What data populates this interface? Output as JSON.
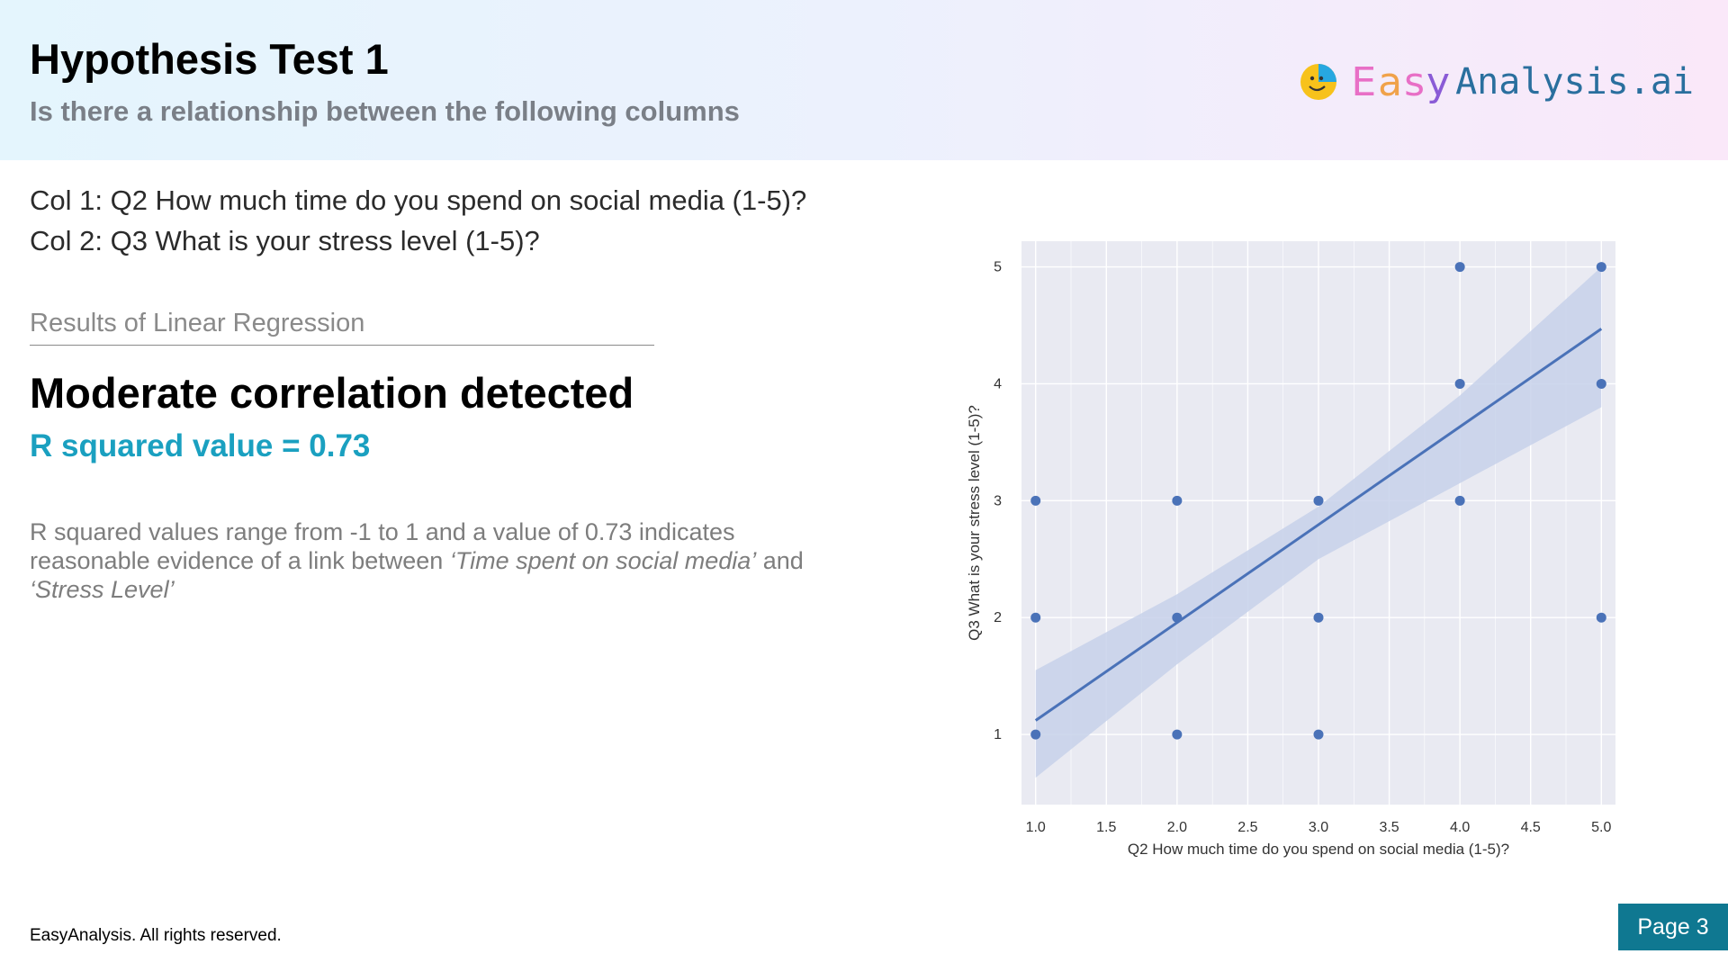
{
  "header": {
    "title": "Hypothesis Test 1",
    "subtitle": "Is there a relationship between the following columns",
    "logo": {
      "icon": "smiley-pie-icon",
      "brand_easy": [
        "E",
        "a",
        "s",
        "y"
      ],
      "brand_rest": "Analysis.ai"
    }
  },
  "columns": {
    "col1": "Col 1: Q2 How much time do you spend on social media (1-5)?",
    "col2": "Col 2: Q3 What is your stress level (1-5)?"
  },
  "results": {
    "label": "Results of Linear Regression",
    "headline": "Moderate correlation detected",
    "rsquared": "R squared value = 0.73",
    "explanation": {
      "part1": "R squared values range from -1 to 1 and a value of 0.73 indicates reasonable evidence of a link between ",
      "em1": "‘Time spent on social media’",
      "part2": " and ",
      "em2": "‘Stress Level’"
    }
  },
  "chart_data": {
    "type": "scatter",
    "title": "",
    "xlabel": "Q2 How much time do you spend on social media (1-5)?",
    "ylabel": "Q3 What is your stress level (1-5)?",
    "xlim": [
      0.9,
      5.1
    ],
    "ylim": [
      0.4,
      5.22
    ],
    "xticks": [
      1.0,
      1.5,
      2.0,
      2.5,
      3.0,
      3.5,
      4.0,
      4.5,
      5.0
    ],
    "xtick_labels": [
      "1.0",
      "1.5",
      "2.0",
      "2.5",
      "3.0",
      "3.5",
      "4.0",
      "4.5",
      "5.0"
    ],
    "yticks": [
      1,
      2,
      3,
      4,
      5
    ],
    "ytick_labels": [
      "1",
      "2",
      "3",
      "4",
      "5"
    ],
    "grid": true,
    "points": [
      {
        "x": 1,
        "y": 1
      },
      {
        "x": 1,
        "y": 2
      },
      {
        "x": 1,
        "y": 3
      },
      {
        "x": 2,
        "y": 1
      },
      {
        "x": 2,
        "y": 2
      },
      {
        "x": 2,
        "y": 3
      },
      {
        "x": 3,
        "y": 1
      },
      {
        "x": 3,
        "y": 2
      },
      {
        "x": 3,
        "y": 3
      },
      {
        "x": 4,
        "y": 3
      },
      {
        "x": 4,
        "y": 4
      },
      {
        "x": 4,
        "y": 5
      },
      {
        "x": 5,
        "y": 2
      },
      {
        "x": 5,
        "y": 4
      },
      {
        "x": 5,
        "y": 5
      }
    ],
    "regression": {
      "x": [
        1,
        5
      ],
      "y": [
        1.12,
        4.47
      ]
    },
    "confidence_band": {
      "x": [
        1,
        2,
        3,
        4,
        5
      ],
      "lower": [
        0.63,
        1.6,
        2.5,
        3.15,
        3.8
      ],
      "upper": [
        1.55,
        2.2,
        2.95,
        3.9,
        5.0
      ]
    },
    "colors": {
      "point": "#4a72b8",
      "line": "#4a72b8",
      "band": "#c7d1ea",
      "background": "#e9eaf2",
      "grid": "#ffffff"
    }
  },
  "footer": {
    "copyright": "EasyAnalysis. All rights reserved.",
    "page": "Page 3"
  }
}
